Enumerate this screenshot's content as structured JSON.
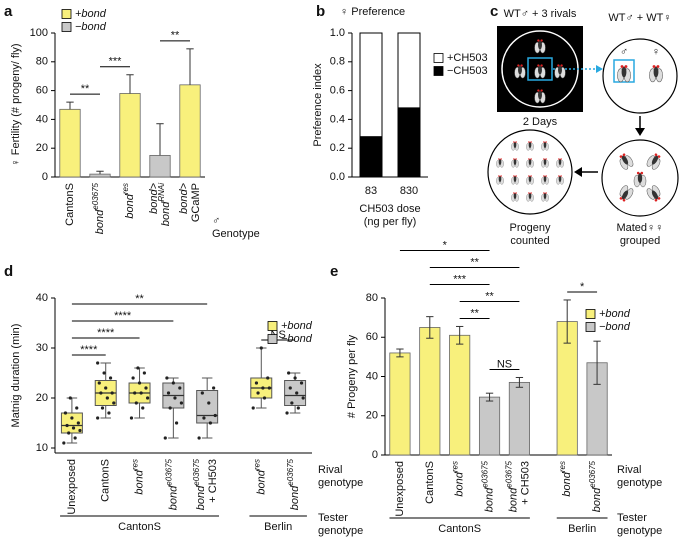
{
  "chart_data": [
    {
      "panel": "a",
      "type": "bar",
      "ylabel": "♀ Fertility (# progeny/ fly)",
      "categories": [
        "CantonS",
        "bond",
        "bond",
        "bond>",
        "bond>"
      ],
      "category_superscripts": [
        null,
        "e03675",
        "res",
        null,
        null
      ],
      "category_second_lines": [
        null,
        null,
        null,
        "bond",
        "GCaMP"
      ],
      "second_line_superscripts": [
        null,
        null,
        null,
        "RNAi",
        null
      ],
      "values": [
        47,
        2,
        58,
        15,
        64
      ],
      "errors": [
        5,
        2,
        13,
        22,
        25
      ],
      "error_style": "upper",
      "colors": [
        "#f8f07c",
        "#c8c8c8",
        "#f8f07c",
        "#c8c8c8",
        "#f8f07c"
      ],
      "ylim": [
        0,
        100
      ],
      "yticks": [
        0,
        20,
        40,
        60,
        80,
        100
      ],
      "legend": [
        {
          "name": "+bond",
          "color": "#f8f07c"
        },
        {
          "name": "−bond",
          "color": "#c8c8c8"
        }
      ],
      "legend_position": "upper left",
      "significance": [
        {
          "between": [
            0,
            1
          ],
          "label": "**"
        },
        {
          "between": [
            1,
            2
          ],
          "label": "***"
        },
        {
          "between": [
            3,
            4
          ],
          "label": "**"
        }
      ],
      "row_labels": [
        [
          "♂",
          "Genotype"
        ]
      ]
    },
    {
      "panel": "b",
      "type": "stacked_bar",
      "title": "♀ Preference",
      "ylabel": "Preference index",
      "xlabel": [
        "CH503 dose",
        "(ng per fly)"
      ],
      "categories": [
        "83",
        "830"
      ],
      "series": [
        {
          "name": "−CH503",
          "color": "#000000",
          "values": [
            0.28,
            0.48
          ]
        },
        {
          "name": "+CH503",
          "color": "#ffffff",
          "values": [
            0.72,
            0.52
          ]
        }
      ],
      "ylim": [
        0,
        1
      ],
      "yticks": [
        {
          "value": 0,
          "label": "0.0"
        },
        {
          "value": 0.2,
          "label": "0.2"
        },
        {
          "value": 0.4,
          "label": "0.4"
        },
        {
          "value": 0.6,
          "label": "0.6"
        },
        {
          "value": 0.8,
          "label": "0.8"
        },
        {
          "value": 1,
          "label": "1.0"
        }
      ],
      "legend_position": "right"
    },
    {
      "panel": "d",
      "type": "box",
      "ylabel": "Matnig duration (min)",
      "categories": [
        "Unexposed",
        "CantonS",
        "bond",
        "bond",
        "bond",
        "bond",
        "bond"
      ],
      "category_superscripts": [
        null,
        null,
        "res",
        "e03675",
        "e03675",
        "res",
        "e03675"
      ],
      "category_second_lines": [
        null,
        null,
        null,
        null,
        "+ CH503",
        null,
        null
      ],
      "second_line_superscripts": [
        null,
        null,
        null,
        null,
        null,
        null,
        null
      ],
      "boxes": [
        {
          "whislo": 11,
          "q1": 13,
          "med": 14.5,
          "q3": 17,
          "whishi": 20,
          "points": [
            11,
            12,
            13,
            13.5,
            14,
            14.5,
            15,
            16,
            17,
            18,
            20
          ]
        },
        {
          "whislo": 16,
          "q1": 18.5,
          "med": 21,
          "q3": 23.5,
          "whishi": 27,
          "points": [
            16,
            17,
            18,
            19,
            20,
            21,
            21,
            22,
            23,
            24,
            25,
            27
          ]
        },
        {
          "whislo": 16,
          "q1": 19,
          "med": 21,
          "q3": 23,
          "whishi": 26,
          "points": [
            16,
            18,
            19,
            20,
            21,
            21,
            22,
            23,
            24,
            25,
            26
          ]
        },
        {
          "whislo": 12,
          "q1": 18,
          "med": 20.5,
          "q3": 23,
          "whishi": 24,
          "points": [
            12,
            15,
            18,
            19,
            20,
            21,
            22,
            23,
            24
          ]
        },
        {
          "whislo": 12,
          "q1": 15,
          "med": 16.5,
          "q3": 21.5,
          "whishi": 24,
          "points": [
            12,
            15,
            16,
            16.5,
            19,
            21,
            22
          ]
        },
        {
          "whislo": 18,
          "q1": 20,
          "med": 22,
          "q3": 24,
          "whishi": 30,
          "points": [
            18,
            20,
            21,
            22,
            22,
            23,
            24,
            30
          ]
        },
        {
          "whislo": 17,
          "q1": 18.5,
          "med": 20.5,
          "q3": 23.5,
          "whishi": 25,
          "points": [
            17,
            18,
            19,
            20,
            21,
            22,
            23,
            24,
            25
          ]
        }
      ],
      "colors": [
        "#f8f07c",
        "#f8f07c",
        "#f8f07c",
        "#c8c8c8",
        "#c8c8c8",
        "#f8f07c",
        "#c8c8c8"
      ],
      "ylim": [
        9,
        40
      ],
      "yticks": [
        10,
        20,
        30,
        40
      ],
      "legend": [
        {
          "name": "+bond",
          "color": "#f8f07c"
        },
        {
          "name": "−bond",
          "color": "#c8c8c8"
        }
      ],
      "legend_position": "upper right",
      "significance": [
        {
          "between": [
            0,
            1
          ],
          "label": "****"
        },
        {
          "between": [
            0,
            2
          ],
          "label": "****"
        },
        {
          "between": [
            0,
            3
          ],
          "label": "****"
        },
        {
          "between": [
            0,
            4
          ],
          "label": "**"
        },
        {
          "between": [
            5,
            6
          ],
          "label": "NS"
        }
      ],
      "groups": [
        {
          "label": "CantonS",
          "span": [
            0,
            4
          ]
        },
        {
          "label": "Berlin",
          "span": [
            5,
            6
          ]
        }
      ],
      "row_labels": [
        [
          "Rival",
          "genotype"
        ],
        [
          "Tester",
          "genotype"
        ]
      ]
    },
    {
      "panel": "e",
      "type": "bar",
      "ylabel": "# Progeny per fly",
      "categories": [
        "Unexposed",
        "CantonS",
        "bond",
        "bond",
        "bond",
        "bond",
        "bond"
      ],
      "category_superscripts": [
        null,
        null,
        "res",
        "e03675",
        "e03675",
        "res",
        "e03675"
      ],
      "category_second_lines": [
        null,
        null,
        null,
        null,
        "+ CH503",
        null,
        null
      ],
      "second_line_superscripts": [
        null,
        null,
        null,
        null,
        null,
        null,
        null
      ],
      "values": [
        52,
        65,
        61,
        29.5,
        37,
        68,
        47
      ],
      "errors": [
        2,
        5.5,
        4.5,
        2,
        2.5,
        11,
        11
      ],
      "error_style": "both",
      "colors": [
        "#f8f07c",
        "#f8f07c",
        "#f8f07c",
        "#c8c8c8",
        "#c8c8c8",
        "#f8f07c",
        "#c8c8c8"
      ],
      "ylim": [
        0,
        80
      ],
      "yticks": [
        0,
        20,
        40,
        60,
        80
      ],
      "legend": [
        {
          "name": "+bond",
          "color": "#f8f07c"
        },
        {
          "name": "−bond",
          "color": "#c8c8c8"
        }
      ],
      "legend_position": "upper right",
      "significance": [
        {
          "between": [
            3,
            4
          ],
          "label": "NS"
        },
        {
          "between": [
            2,
            3
          ],
          "label": "**"
        },
        {
          "between": [
            2,
            4
          ],
          "label": "**"
        },
        {
          "between": [
            1,
            3
          ],
          "label": "***"
        },
        {
          "between": [
            1,
            4
          ],
          "label": "**"
        },
        {
          "between": [
            0,
            3
          ],
          "label": "*"
        },
        {
          "between": [
            5,
            6
          ],
          "label": "*"
        }
      ],
      "groups": [
        {
          "label": "CantonS",
          "span": [
            0,
            4
          ]
        },
        {
          "label": "Berlin",
          "span": [
            5,
            6
          ]
        }
      ],
      "row_labels": [
        [
          "Rival",
          "genotype"
        ],
        [
          "Tester",
          "genotype"
        ]
      ]
    }
  ],
  "diagram": {
    "panel": "c",
    "top_left": "WT♂ + 3 rivals",
    "duration": "2 Days",
    "top_right": "WT♂ + WT♀",
    "male": "♂",
    "female": "♀",
    "mated": [
      "Mated♀♀",
      "grouped"
    ],
    "progeny": [
      "Progeny",
      "counted"
    ]
  }
}
